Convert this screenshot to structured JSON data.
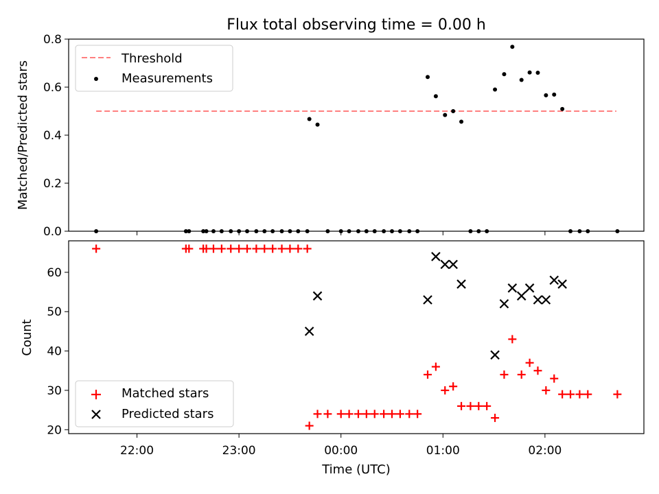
{
  "title": "Flux total observing time = 0.00 h",
  "x_axis": {
    "label": "Time (UTC)",
    "ticks": [
      "22:00",
      "23:00",
      "00:00",
      "01:00",
      "02:00"
    ],
    "tick_hours": [
      22.0,
      23.0,
      24.0,
      25.0,
      26.0
    ],
    "range_hours": [
      21.33,
      26.97
    ]
  },
  "chart_data": [
    {
      "type": "scatter",
      "ylabel": "Matched/Predicted stars",
      "ylim": [
        0,
        0.8
      ],
      "yticks": [
        "0.0",
        "0.2",
        "0.4",
        "0.6",
        "0.8"
      ],
      "ytick_values": [
        0,
        0.2,
        0.4,
        0.6,
        0.8
      ],
      "grid": false,
      "legend_position": "upper-left",
      "threshold": {
        "name": "Threshold",
        "y": 0.5,
        "x_start": 21.6,
        "x_end": 26.7,
        "color": "#ff7f7f"
      },
      "series": [
        {
          "name": "Measurements",
          "color": "#000000",
          "x": [
            21.6,
            22.48,
            22.51,
            22.65,
            22.68,
            22.75,
            22.83,
            22.92,
            23.0,
            23.08,
            23.17,
            23.25,
            23.33,
            23.42,
            23.5,
            23.58,
            23.67,
            23.69,
            23.77,
            23.87,
            24.0,
            24.08,
            24.17,
            24.25,
            24.33,
            24.42,
            24.5,
            24.58,
            24.67,
            24.75,
            24.85,
            24.93,
            25.02,
            25.1,
            25.18,
            25.27,
            25.35,
            25.43,
            25.51,
            25.6,
            25.68,
            25.77,
            25.85,
            25.93,
            26.01,
            26.09,
            26.17,
            26.25,
            26.34,
            26.42,
            26.71
          ],
          "y": [
            0.0,
            0.0,
            0.0,
            0.0,
            0.0,
            0.0,
            0.0,
            0.0,
            0.0,
            0.0,
            0.0,
            0.0,
            0.0,
            0.0,
            0.0,
            0.0,
            0.0,
            0.467,
            0.444,
            0.0,
            0.0,
            0.0,
            0.0,
            0.0,
            0.0,
            0.0,
            0.0,
            0.0,
            0.0,
            0.0,
            0.642,
            0.562,
            0.484,
            0.5,
            0.456,
            0.0,
            0.0,
            0.0,
            0.59,
            0.654,
            0.768,
            0.63,
            0.661,
            0.66,
            0.566,
            0.569,
            0.509,
            0.0,
            0.0,
            0.0,
            0.0
          ]
        }
      ]
    },
    {
      "type": "scatter",
      "ylabel": "Count",
      "ylim": [
        19,
        68
      ],
      "yticks": [
        "20",
        "30",
        "40",
        "50",
        "60"
      ],
      "ytick_values": [
        20,
        30,
        40,
        50,
        60
      ],
      "grid": false,
      "legend_position": "lower-left",
      "series": [
        {
          "name": "Matched stars",
          "marker": "+",
          "color": "#ff0000",
          "x": [
            21.6,
            22.48,
            22.51,
            22.65,
            22.68,
            22.75,
            22.83,
            22.92,
            23.0,
            23.08,
            23.17,
            23.25,
            23.33,
            23.42,
            23.5,
            23.58,
            23.67,
            23.69,
            23.77,
            23.87,
            24.0,
            24.08,
            24.17,
            24.25,
            24.33,
            24.42,
            24.5,
            24.58,
            24.67,
            24.75,
            24.85,
            24.93,
            25.02,
            25.1,
            25.18,
            25.27,
            25.35,
            25.43,
            25.51,
            25.6,
            25.68,
            25.77,
            25.85,
            25.93,
            26.01,
            26.09,
            26.17,
            26.25,
            26.34,
            26.42,
            26.71
          ],
          "y": [
            66,
            66,
            66,
            66,
            66,
            66,
            66,
            66,
            66,
            66,
            66,
            66,
            66,
            66,
            66,
            66,
            66,
            21,
            24,
            24,
            24,
            24,
            24,
            24,
            24,
            24,
            24,
            24,
            24,
            24,
            34,
            36,
            30,
            31,
            26,
            26,
            26,
            26,
            23,
            34,
            43,
            34,
            37,
            35,
            30,
            33,
            29,
            29,
            29,
            29,
            29
          ]
        },
        {
          "name": "Predicted stars",
          "marker": "x",
          "color": "#000000",
          "x": [
            23.69,
            23.77,
            24.85,
            24.93,
            25.02,
            25.1,
            25.18,
            25.51,
            25.6,
            25.68,
            25.77,
            25.85,
            25.93,
            26.01,
            26.09,
            26.17
          ],
          "y": [
            45,
            54,
            53,
            64,
            62,
            62,
            57,
            39,
            52,
            56,
            54,
            56,
            53,
            53,
            58,
            57
          ]
        }
      ]
    }
  ]
}
